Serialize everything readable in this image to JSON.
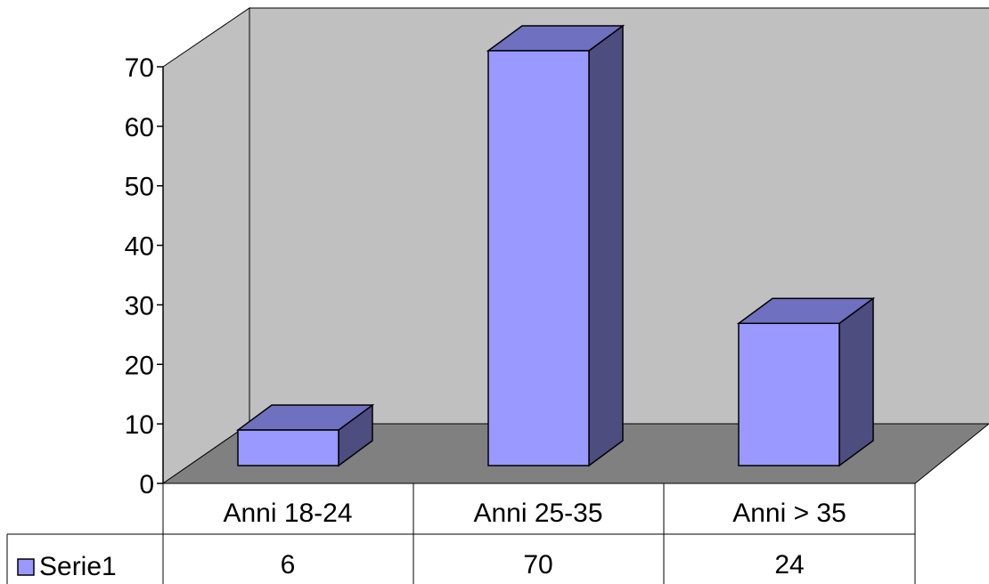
{
  "chart_data": {
    "type": "bar",
    "categories": [
      "Anni 18-24",
      "Anni 25-35",
      "Anni > 35"
    ],
    "series": [
      {
        "name": "Serie1",
        "values": [
          6,
          70,
          24
        ]
      }
    ],
    "ylim": [
      0,
      70
    ],
    "yticks": [
      0,
      10,
      20,
      30,
      40,
      50,
      60,
      70
    ],
    "grid": false,
    "legend": "data-table",
    "colors": {
      "bar_front": "#9999ff",
      "bar_top": "#7070c0",
      "bar_side": "#4d4d80",
      "back_wall": "#c0c0c0",
      "floor": "#808080"
    }
  }
}
